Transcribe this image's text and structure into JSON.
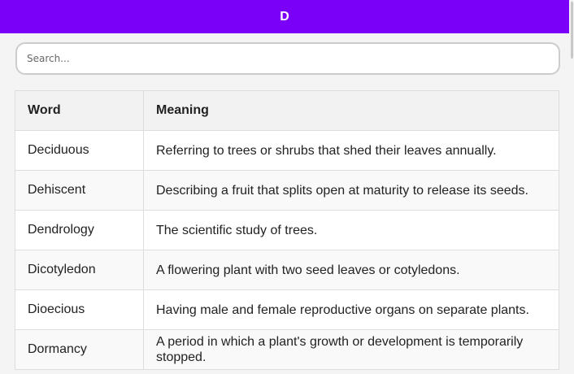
{
  "header": {
    "title": "D"
  },
  "search": {
    "placeholder": "Search..."
  },
  "table": {
    "columns": [
      "Word",
      "Meaning"
    ],
    "rows": [
      {
        "word": "Deciduous",
        "meaning": "Referring to trees or shrubs that shed their leaves annually."
      },
      {
        "word": "Dehiscent",
        "meaning": "Describing a fruit that splits open at maturity to release its seeds."
      },
      {
        "word": "Dendrology",
        "meaning": "The scientific study of trees."
      },
      {
        "word": "Dicotyledon",
        "meaning": "A flowering plant with two seed leaves or cotyledons."
      },
      {
        "word": "Dioecious",
        "meaning": "Having male and female reproductive organs on separate plants."
      },
      {
        "word": "Dormancy",
        "meaning": "A period in which a plant's growth or development is temporarily stopped."
      }
    ]
  },
  "colors": {
    "accent": "#7a00f8"
  }
}
